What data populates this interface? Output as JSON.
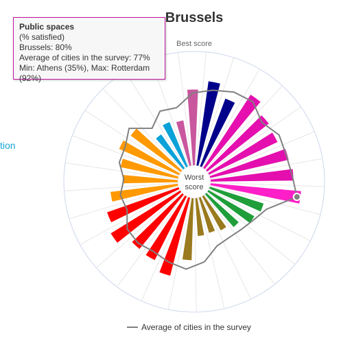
{
  "chart_data": {
    "type": "polar_bar",
    "title": "Brussels",
    "axis_top_label": "Best score",
    "center_label_line1": "Worst",
    "center_label_line2": "score",
    "side_label": "tion",
    "series": [
      {
        "name": "",
        "values": [
          75,
          64,
          77,
          69,
          67,
          71,
          73,
          80,
          50,
          47,
          39,
          35,
          33,
          34,
          55,
          71,
          63,
          62,
          72,
          67,
          60,
          49,
          52,
          58,
          55,
          37,
          43,
          41,
          67
        ]
      },
      {
        "name": "Average of cities in the survey",
        "values": [
          68,
          72,
          73,
          65,
          71,
          70,
          72,
          77,
          54,
          48,
          45,
          44,
          46,
          57,
          63,
          60,
          57,
          59,
          58,
          50,
          52,
          48,
          54,
          54,
          60,
          46,
          55,
          53,
          64
        ]
      }
    ],
    "bar_colors": [
      "#00008b",
      "#00008b",
      "#e40fae",
      "#e40fae",
      "#e40fae",
      "#e40fae",
      "#e40fae",
      "#ff1fc8",
      "#1f9e3a",
      "#1f9e3a",
      "#1f9e3a",
      "#9a7a1e",
      "#9a7a1e",
      "#9a7a1e",
      "#9a7a1e",
      "#ff0000",
      "#ff0000",
      "#ff0000",
      "#ff0000",
      "#ff0000",
      "#ff9900",
      "#ff9900",
      "#ff9900",
      "#ff9900",
      "#ff9900",
      "#0aa2d8",
      "#0aa2d8",
      "#c8579e",
      "#c8579e"
    ],
    "highlight_index": 7,
    "ylim": [
      0,
      100
    ]
  },
  "legend": {
    "label": "Average of cities in the survey",
    "color": "#808080"
  },
  "tooltip": {
    "title": "Public spaces",
    "line1": "(% satisfied)",
    "line2": "Brussels: 80%",
    "line3": "Average of cities in the survey: 77%",
    "line4": "Min: Athens (35%), Max: Rotterdam (92%)"
  }
}
